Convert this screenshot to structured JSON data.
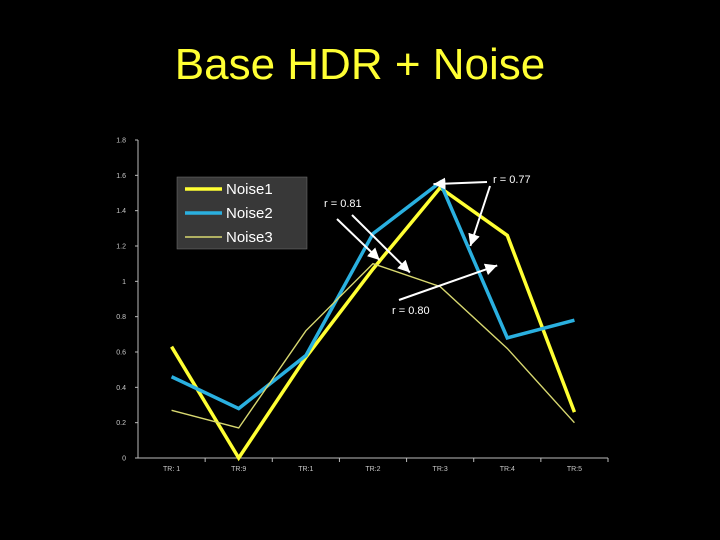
{
  "slide": {
    "title": "Base HDR + Noise"
  },
  "chart_data": {
    "type": "line",
    "title": "Base HDR + Noise",
    "xlabel": "",
    "ylabel": "",
    "categories": [
      "TR: 1",
      "TR:9",
      "TR:1",
      "TR:2",
      "TR:3",
      "TR:4",
      "TR:5"
    ],
    "ylim": [
      0,
      1.8
    ],
    "yticks": [
      0,
      0.2,
      0.4,
      0.6,
      0.8,
      1,
      1.2,
      1.4,
      1.6,
      1.8
    ],
    "ytick_labels": [
      "0",
      "0.2",
      "0.4",
      "0.6",
      "0.8",
      "1",
      "1.2",
      "1.4",
      "1.6",
      "1.8"
    ],
    "grid": false,
    "legend_position": "top-left",
    "series": [
      {
        "name": "Noise1",
        "color": "#ffff33",
        "style": "thick",
        "values": [
          0.63,
          0.0,
          0.57,
          1.07,
          1.53,
          1.26,
          0.26
        ]
      },
      {
        "name": "Noise2",
        "color": "#2ab0e0",
        "style": "thick",
        "values": [
          0.46,
          0.28,
          0.58,
          1.27,
          1.56,
          0.68,
          0.78
        ]
      },
      {
        "name": "Noise3",
        "color": "#d8d870",
        "style": "thin",
        "values": [
          0.27,
          0.17,
          0.72,
          1.1,
          0.97,
          0.62,
          0.2
        ]
      }
    ],
    "annotations": [
      {
        "text": "r = 0.77",
        "targets": [
          [
            3.9,
            1.55
          ],
          [
            4.45,
            1.2
          ]
        ]
      },
      {
        "text": "r = 0.81",
        "targets": [
          [
            3.1,
            1.12
          ],
          [
            3.55,
            1.05
          ]
        ]
      },
      {
        "text": "r = 0.80",
        "targets": [
          [
            4.85,
            1.09
          ]
        ]
      }
    ]
  }
}
